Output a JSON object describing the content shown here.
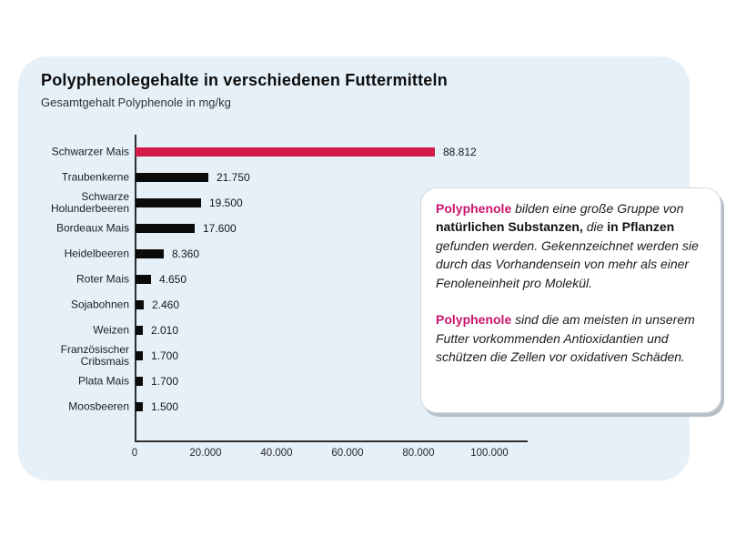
{
  "chart_data": {
    "type": "bar",
    "orientation": "horizontal",
    "title": "Polyphenolegehalte in verschiedenen Futtermitteln",
    "subtitle": "Gesamtgehalt Polyphenole in mg/kg",
    "categories": [
      "Schwarzer Mais",
      "Traubenkerne",
      "Schwarze\nHolunderbeeren",
      "Bordeaux Mais",
      "Heidelbeeren",
      "Roter Mais",
      "Sojabohnen",
      "Weizen",
      "Französischer\nCribsmais",
      "Plata Mais",
      "Moosbeeren"
    ],
    "values": [
      88812,
      21750,
      19500,
      17600,
      8360,
      4650,
      2460,
      2010,
      1700,
      1700,
      1500
    ],
    "value_labels": [
      "88.812",
      "21.750",
      "19.500",
      "17.600",
      "8.360",
      "4.650",
      "2.460",
      "2.010",
      "1.700",
      "1.700",
      "1.500"
    ],
    "bar_colors": [
      "#D31A4B",
      "#0b0b0b",
      "#0b0b0b",
      "#0b0b0b",
      "#0b0b0b",
      "#0b0b0b",
      "#0b0b0b",
      "#0b0b0b",
      "#0b0b0b",
      "#0b0b0b",
      "#0b0b0b"
    ],
    "xticks": [
      "0",
      "20.000",
      "40.000",
      "60.000",
      "80.000",
      "100.000"
    ],
    "xtick_values": [
      0,
      20000,
      40000,
      60000,
      80000,
      100000
    ],
    "xlim": [
      0,
      100000
    ],
    "grid": false,
    "legend": false
  },
  "callout": {
    "paragraphs": [
      {
        "runs": [
          {
            "text": "Polyphenole",
            "style": "pink"
          },
          {
            "text": " bilden eine große Gruppe von ",
            "style": "normal"
          },
          {
            "text": "natürlichen Substanzen,",
            "style": "bold"
          },
          {
            "text": " die ",
            "style": "normal"
          },
          {
            "text": "in Pflanzen",
            "style": "bold"
          },
          {
            "text": " gefunden werden. Gekennzeichnet werden sie durch das Vorhandensein von mehr als einer Fenoleneinheit pro Molekül.",
            "style": "normal"
          }
        ]
      },
      {
        "runs": [
          {
            "text": "Polyphenole",
            "style": "pink"
          },
          {
            "text": " sind die am meisten in unserem Futter vorkommenden Antioxidantien und schützen die Zellen vor oxidativen Schäden.",
            "style": "normal"
          }
        ]
      }
    ]
  },
  "colors": {
    "panel_bg": "#E6F0F8",
    "bar_highlight": "#D31A4B",
    "bar_default": "#0b0b0b",
    "accent_text": "#C9156B",
    "axis": "#2e2e2e"
  }
}
